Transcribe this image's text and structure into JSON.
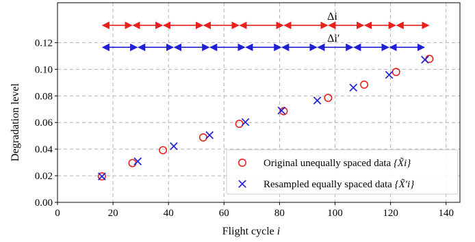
{
  "chart_data": {
    "type": "scatter",
    "xlabel": "Flight cycle",
    "xlabel_var": "i",
    "ylabel": "Degradation level",
    "xlim": [
      0,
      145
    ],
    "ylim": [
      0,
      0.15
    ],
    "xticks": [
      0,
      20,
      40,
      60,
      80,
      100,
      120,
      140
    ],
    "xtick_labels": [
      "0",
      "20",
      "40",
      "60",
      "80",
      "100",
      "120",
      "140"
    ],
    "yticks": [
      0.0,
      0.02,
      0.04,
      0.06,
      0.08,
      0.1,
      0.12
    ],
    "ytick_labels": [
      "0.00",
      "0.02",
      "0.04",
      "0.06",
      "0.08",
      "0.10",
      "0.12"
    ],
    "grid": true,
    "legend_position": "bottom-right",
    "series": [
      {
        "name": "Original unequally spaced data",
        "legend_math": "{X̃i}",
        "marker": "circle",
        "color": "#e8211f",
        "x": [
          16,
          27,
          38,
          52.5,
          65.5,
          81.5,
          97.5,
          110.5,
          122,
          134
        ],
        "y": [
          0.0195,
          0.0295,
          0.0392,
          0.0488,
          0.059,
          0.0685,
          0.0785,
          0.0885,
          0.098,
          0.1078
        ]
      },
      {
        "name": "Resampled equally spaced data",
        "legend_math": "{X̃′i}",
        "marker": "x",
        "color": "#1f1fd6",
        "x": [
          16,
          28.9,
          41.9,
          54.8,
          67.7,
          80.7,
          93.6,
          106.6,
          119.5,
          132.4
        ],
        "y": [
          0.0195,
          0.0308,
          0.0422,
          0.0505,
          0.0603,
          0.069,
          0.0765,
          0.0862,
          0.0958,
          0.1072
        ]
      }
    ],
    "annotations": [
      {
        "label": "Δi",
        "color": "#e8211f",
        "y": 0.133,
        "boundaries": [
          16,
          27,
          38,
          52.5,
          65.5,
          81.5,
          97.5,
          110.5,
          122,
          134
        ]
      },
      {
        "label": "Δi′",
        "color": "#1f1fd6",
        "y": 0.1165,
        "boundaries": [
          16,
          28.9,
          41.9,
          54.8,
          67.7,
          80.7,
          93.6,
          106.6,
          119.5,
          132.4
        ]
      }
    ]
  }
}
